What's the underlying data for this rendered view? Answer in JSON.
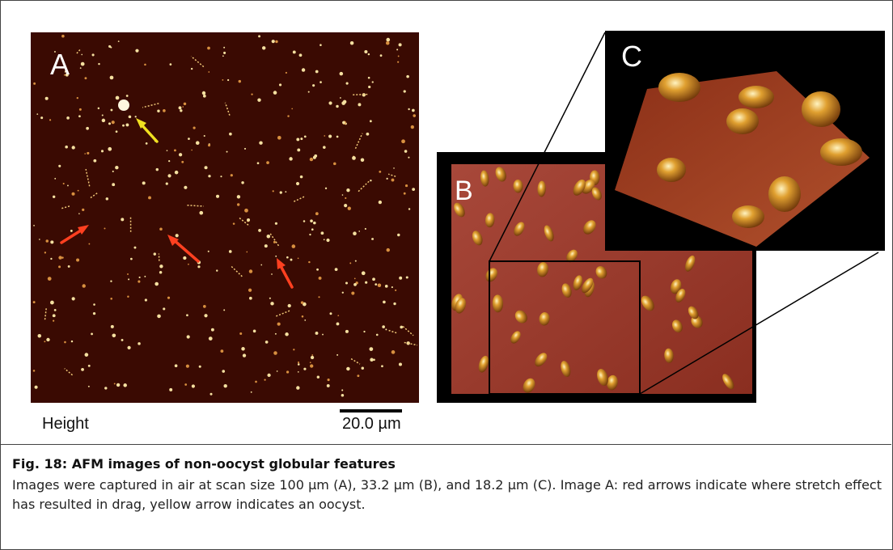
{
  "panels": {
    "a": {
      "label": "A",
      "axis_label": "Height",
      "scale_bar": "20.0 µm"
    },
    "b": {
      "label": "B"
    },
    "c": {
      "label": "C"
    }
  },
  "caption": {
    "title": "Fig. 18: AFM images of non-oocyst globular features",
    "body": "Images were captured in air at scan size 100 µm (A), 33.2 µm (B), and 18.2 µm (C). Image A: red arrows indicate where stretch effect has resulted in drag, yellow arrow indicates an oocyst."
  }
}
